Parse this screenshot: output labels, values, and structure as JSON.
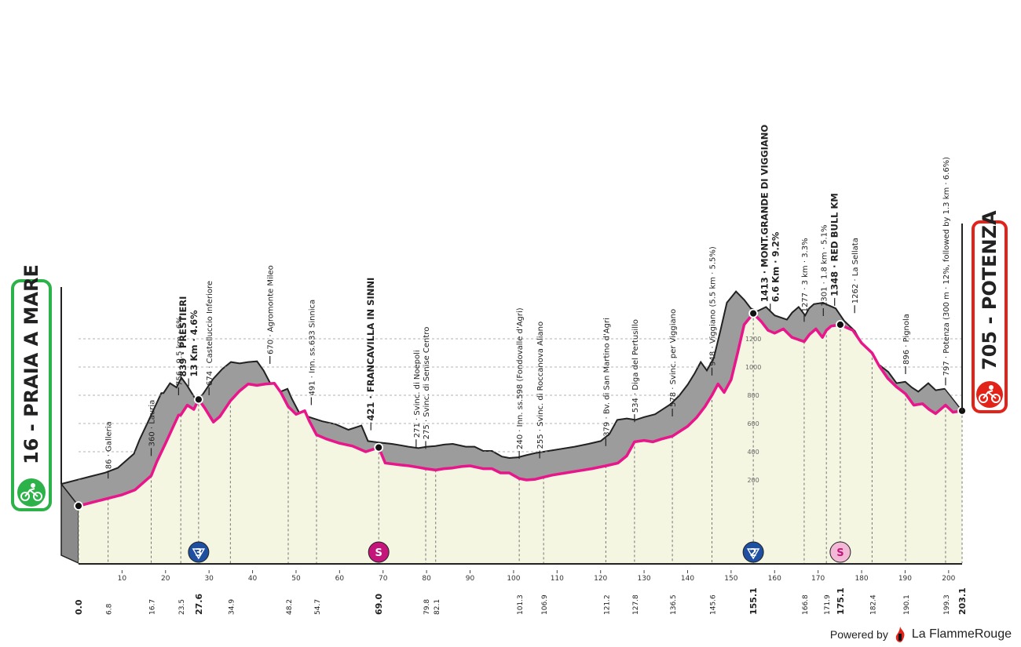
{
  "stage": {
    "start_label": "16 - PRAIA A MARE",
    "finish_label": "705 - POTENZA"
  },
  "colors": {
    "start_badge": "#2db24a",
    "finish_badge": "#e2231a",
    "profile_pink": "#e8168a",
    "profile_grey": "#9c9c9c",
    "profile_fill": "#f4f6e2",
    "kom_blue": "#1f4fa0",
    "sprint_pink": "#c4157b",
    "sprint_light": "#f2b8d6"
  },
  "footer": {
    "powered_by": "Powered by",
    "brand": "La FlammeRouge"
  },
  "chart_data": {
    "type": "area",
    "title": "",
    "xlabel": "",
    "ylabel": "",
    "xlim": [
      0,
      203.1
    ],
    "ylim": [
      0,
      1500
    ],
    "x_ticks": [
      10,
      20,
      30,
      40,
      50,
      60,
      70,
      80,
      90,
      100,
      110,
      120,
      130,
      140,
      150,
      160,
      170,
      180,
      190,
      200
    ],
    "y_ticks": [
      200,
      400,
      600,
      800,
      1000,
      1200
    ],
    "profile": [
      [
        0,
        16
      ],
      [
        3,
        40
      ],
      [
        6.8,
        70
      ],
      [
        10,
        95
      ],
      [
        13,
        130
      ],
      [
        16.7,
        230
      ],
      [
        18,
        330
      ],
      [
        20,
        460
      ],
      [
        21.5,
        560
      ],
      [
        23,
        660
      ],
      [
        23.5,
        660
      ],
      [
        25,
        730
      ],
      [
        26.5,
        700
      ],
      [
        27.6,
        770
      ],
      [
        29,
        710
      ],
      [
        31,
        610
      ],
      [
        32.5,
        650
      ],
      [
        34.9,
        760
      ],
      [
        37,
        830
      ],
      [
        39,
        880
      ],
      [
        41,
        870
      ],
      [
        43,
        880
      ],
      [
        45,
        885
      ],
      [
        46.5,
        820
      ],
      [
        48.2,
        720
      ],
      [
        50,
        665
      ],
      [
        52,
        690
      ],
      [
        53,
        620
      ],
      [
        54.7,
        520
      ],
      [
        57,
        490
      ],
      [
        60,
        460
      ],
      [
        63,
        440
      ],
      [
        66,
        400
      ],
      [
        68,
        420
      ],
      [
        69,
        430
      ],
      [
        70.5,
        320
      ],
      [
        73,
        310
      ],
      [
        76,
        300
      ],
      [
        78,
        290
      ],
      [
        79.8,
        280
      ],
      [
        82.1,
        270
      ],
      [
        84,
        280
      ],
      [
        86,
        285
      ],
      [
        88,
        295
      ],
      [
        90,
        300
      ],
      [
        93,
        280
      ],
      [
        95,
        280
      ],
      [
        97,
        250
      ],
      [
        99,
        250
      ],
      [
        101.3,
        210
      ],
      [
        103,
        200
      ],
      [
        105,
        205
      ],
      [
        106.9,
        220
      ],
      [
        109,
        235
      ],
      [
        112,
        250
      ],
      [
        115,
        265
      ],
      [
        118,
        280
      ],
      [
        121.2,
        300
      ],
      [
        124,
        320
      ],
      [
        126,
        370
      ],
      [
        127.8,
        470
      ],
      [
        130,
        480
      ],
      [
        132,
        470
      ],
      [
        134,
        490
      ],
      [
        136.5,
        510
      ],
      [
        138,
        540
      ],
      [
        140,
        580
      ],
      [
        142,
        640
      ],
      [
        144,
        720
      ],
      [
        145.6,
        800
      ],
      [
        147,
        880
      ],
      [
        148.4,
        820
      ],
      [
        150,
        910
      ],
      [
        151.5,
        1100
      ],
      [
        153,
        1300
      ],
      [
        155.1,
        1380
      ],
      [
        157,
        1320
      ],
      [
        158.5,
        1260
      ],
      [
        160,
        1240
      ],
      [
        162,
        1270
      ],
      [
        164,
        1210
      ],
      [
        166.8,
        1180
      ],
      [
        168,
        1230
      ],
      [
        169.5,
        1270
      ],
      [
        171,
        1210
      ],
      [
        171.9,
        1260
      ],
      [
        173,
        1290
      ],
      [
        175.1,
        1300
      ],
      [
        176.5,
        1280
      ],
      [
        178,
        1260
      ],
      [
        180,
        1170
      ],
      [
        182.4,
        1100
      ],
      [
        184,
        1010
      ],
      [
        186,
        920
      ],
      [
        188,
        860
      ],
      [
        190.1,
        810
      ],
      [
        192,
        730
      ],
      [
        194,
        740
      ],
      [
        195.5,
        700
      ],
      [
        197,
        670
      ],
      [
        199.3,
        730
      ],
      [
        201,
        680
      ],
      [
        203.1,
        690
      ]
    ],
    "markers_km": [
      0.0,
      27.6,
      69.0,
      155.1,
      175.1,
      203.1
    ],
    "km_labels": [
      {
        "km": 0.0,
        "label": "0.0",
        "bold": true
      },
      {
        "km": 6.8,
        "label": "6.8",
        "bold": false
      },
      {
        "km": 16.7,
        "label": "16.7",
        "bold": false
      },
      {
        "km": 23.5,
        "label": "23.5",
        "bold": false
      },
      {
        "km": 27.6,
        "label": "27.6",
        "bold": true
      },
      {
        "km": 34.9,
        "label": "34.9",
        "bold": false
      },
      {
        "km": 48.2,
        "label": "48.2",
        "bold": false
      },
      {
        "km": 54.7,
        "label": "54.7",
        "bold": false
      },
      {
        "km": 69.0,
        "label": "69.0",
        "bold": true
      },
      {
        "km": 79.8,
        "label": "79.8",
        "bold": false
      },
      {
        "km": 82.1,
        "label": "82.1",
        "bold": false
      },
      {
        "km": 101.3,
        "label": "101.3",
        "bold": false
      },
      {
        "km": 106.9,
        "label": "106.9",
        "bold": false
      },
      {
        "km": 121.2,
        "label": "121.2",
        "bold": false
      },
      {
        "km": 127.8,
        "label": "127.8",
        "bold": false
      },
      {
        "km": 136.5,
        "label": "136.5",
        "bold": false
      },
      {
        "km": 145.6,
        "label": "145.6",
        "bold": false
      },
      {
        "km": 155.1,
        "label": "155.1",
        "bold": true
      },
      {
        "km": 166.8,
        "label": "166.8",
        "bold": false
      },
      {
        "km": 171.9,
        "label": "171.9",
        "bold": false
      },
      {
        "km": 175.1,
        "label": "175.1",
        "bold": true
      },
      {
        "km": 182.4,
        "label": "182.4",
        "bold": false
      },
      {
        "km": 190.1,
        "label": "190.1",
        "bold": false
      },
      {
        "km": 199.3,
        "label": "199.3",
        "bold": false
      },
      {
        "km": 203.1,
        "label": "203.1",
        "bold": true
      }
    ],
    "annotations": [
      {
        "km": 6.8,
        "elev": 86,
        "lines": [
          "86 · Galleria"
        ],
        "bold": false
      },
      {
        "km": 16.7,
        "elev": 360,
        "lines": [
          "360 · Lauria"
        ],
        "bold": false
      },
      {
        "km": 23.0,
        "elev": 756,
        "lines": [
          "756 · 9.5 km · 6%"
        ],
        "bold": false
      },
      {
        "km": 25.3,
        "elev": 839,
        "lines": [
          "839 · PRESTIERI",
          "13 Km · 4.6%"
        ],
        "bold": true
      },
      {
        "km": 30.0,
        "elev": 674,
        "lines": [
          "674 · Castelluccio Inferiore"
        ],
        "bold": false
      },
      {
        "km": 44.0,
        "elev": 670,
        "lines": [
          "670 · Agromonte Mileo"
        ],
        "bold": false
      },
      {
        "km": 53.5,
        "elev": 491,
        "lines": [
          "491 · Inn. ss.633 Sinnica"
        ],
        "bold": false
      },
      {
        "km": 67.2,
        "elev": 421,
        "lines": [
          "421 · FRANCAVILLA IN SINNI"
        ],
        "bold": true
      },
      {
        "km": 77.6,
        "elev": 271,
        "lines": [
          "271 · Svinc. di Noepoli"
        ],
        "bold": false
      },
      {
        "km": 79.8,
        "elev": 275,
        "lines": [
          "275 · Svinc. di Senise Centro"
        ],
        "bold": false
      },
      {
        "km": 101.3,
        "elev": 240,
        "lines": [
          "240 · Inn. ss.598 (Fondovalle d'Agri)"
        ],
        "bold": false
      },
      {
        "km": 106.0,
        "elev": 255,
        "lines": [
          "255 · Svinc. di Roccanova Aliano"
        ],
        "bold": false
      },
      {
        "km": 121.2,
        "elev": 379,
        "lines": [
          "379 · Bv. di San Martino d'Agri"
        ],
        "bold": false
      },
      {
        "km": 127.8,
        "elev": 534,
        "lines": [
          "534 · Diga del Pertusillo"
        ],
        "bold": false
      },
      {
        "km": 136.5,
        "elev": 578,
        "lines": [
          "578 · Svinc. per Viggiano"
        ],
        "bold": false
      },
      {
        "km": 145.6,
        "elev": 948,
        "lines": [
          "948 · Viggiano (5.5 km · 5.5%)"
        ],
        "bold": false
      },
      {
        "km": 159.0,
        "elev": 1413,
        "lines": [
          "1413 · MONT.GRANDE DI VIGGIANO",
          "6.6 Km · 9.2%"
        ],
        "bold": true
      },
      {
        "km": 166.8,
        "elev": 1277,
        "lines": [
          "1277 · 3 km · 3.3%"
        ],
        "bold": false
      },
      {
        "km": 171.2,
        "elev": 1301,
        "lines": [
          "1301 · 1.8 km · 5.1%"
        ],
        "bold": false
      },
      {
        "km": 173.8,
        "elev": 1348,
        "lines": [
          "1348 · RED BULL KM"
        ],
        "bold": true
      },
      {
        "km": 178.4,
        "elev": 1262,
        "lines": [
          "1262 · La Sellata"
        ],
        "bold": false
      },
      {
        "km": 190.1,
        "elev": 896,
        "lines": [
          "896 · Pignola"
        ],
        "bold": false
      },
      {
        "km": 199.3,
        "elev": 797,
        "lines": [
          "797 · Potenza (300 m · 12%, followed by 1.3 km · 6.6%)"
        ],
        "bold": false
      }
    ],
    "badges": [
      {
        "km": 27.6,
        "type": "kom",
        "label": "3"
      },
      {
        "km": 69.0,
        "type": "sprint",
        "label": "S"
      },
      {
        "km": 155.1,
        "type": "kom",
        "label": "2"
      },
      {
        "km": 175.1,
        "type": "sprint-light",
        "label": "S"
      }
    ]
  }
}
